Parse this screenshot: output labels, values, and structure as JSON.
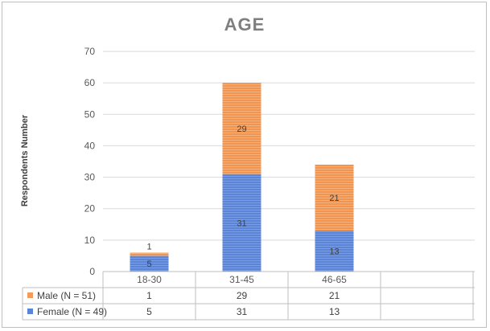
{
  "chart_data": {
    "type": "bar",
    "stacked": true,
    "title": "AGE",
    "ylabel": "Respondents Number",
    "xlabel": "",
    "ylim": [
      0,
      70
    ],
    "yticks": [
      0,
      10,
      20,
      30,
      40,
      50,
      60,
      70
    ],
    "grid": true,
    "categories": [
      "18-30",
      "31-45",
      "46-65"
    ],
    "series": [
      {
        "name": "Female (N = 49)",
        "values": [
          5,
          31,
          13
        ],
        "color": "#5b84d6"
      },
      {
        "name": "Male (N = 51)",
        "values": [
          1,
          29,
          21
        ],
        "color": "#f29b5c"
      }
    ],
    "data_table": true
  }
}
